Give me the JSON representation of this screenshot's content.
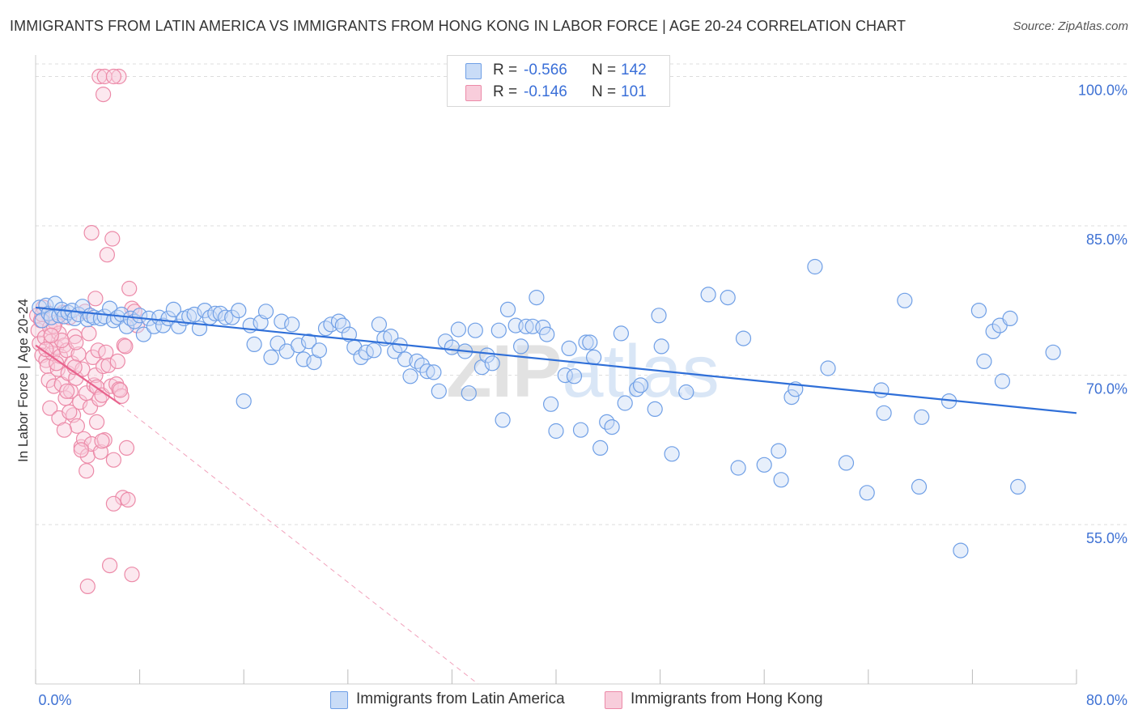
{
  "title": "IMMIGRANTS FROM LATIN AMERICA VS IMMIGRANTS FROM HONG KONG IN LABOR FORCE | AGE 20-24 CORRELATION CHART",
  "source": "Source: ZipAtlas.com",
  "watermark": "ZIPatlas",
  "legend": {
    "r_label": "R =",
    "n_label": "N =",
    "entries": [
      {
        "name": "Immigrants from Latin America",
        "r": "-0.566",
        "n": "142",
        "color": "#6f9fe6",
        "fill": "#c9dcf7"
      },
      {
        "name": "Immigrants from Hong Kong",
        "r": "-0.146",
        "n": "101",
        "color": "#ec8aa8",
        "fill": "#f8cddb"
      }
    ]
  },
  "colors": {
    "blue_line": "#2f6fd8",
    "pink_line": "#e8638d",
    "tick_text": "#3f72d4",
    "grid": "#dddddd"
  },
  "chart_data": {
    "type": "scatter",
    "title": "IMMIGRANTS FROM LATIN AMERICA VS IMMIGRANTS FROM HONG KONG IN LABOR FORCE | AGE 20-24 CORRELATION CHART",
    "xlabel": "",
    "ylabel": "In Labor Force | Age 20-24",
    "xlim": [
      0,
      80
    ],
    "ylim": [
      39,
      101.5
    ],
    "x_tick_labels": [
      {
        "value": 0,
        "label": "0.0%"
      },
      {
        "value": 80,
        "label": "80.0%"
      }
    ],
    "y_ticks": [
      {
        "value": 55,
        "label": "55.0%"
      },
      {
        "value": 70,
        "label": "70.0%"
      },
      {
        "value": 85,
        "label": "85.0%"
      },
      {
        "value": 100,
        "label": "100.0%"
      }
    ],
    "grid": true,
    "series": [
      {
        "name": "Immigrants from Latin America",
        "trend": {
          "x": [
            0,
            80
          ],
          "y": [
            76.8,
            66.2
          ]
        },
        "points": [
          [
            0.3,
            76.8
          ],
          [
            0.5,
            75.5
          ],
          [
            0.8,
            77.0
          ],
          [
            1.0,
            76.2
          ],
          [
            1.2,
            75.8
          ],
          [
            1.5,
            77.2
          ],
          [
            1.8,
            76.0
          ],
          [
            2.0,
            76.6
          ],
          [
            2.2,
            75.9
          ],
          [
            2.5,
            76.3
          ],
          [
            2.8,
            76.5
          ],
          [
            3.0,
            75.7
          ],
          [
            3.3,
            76.1
          ],
          [
            3.6,
            76.9
          ],
          [
            4.0,
            75.6
          ],
          [
            4.2,
            76.0
          ],
          [
            4.5,
            75.8
          ],
          [
            5.0,
            75.7
          ],
          [
            5.3,
            75.9
          ],
          [
            5.7,
            76.7
          ],
          [
            6.0,
            75.5
          ],
          [
            6.3,
            75.8
          ],
          [
            6.6,
            76.1
          ],
          [
            7.0,
            74.9
          ],
          [
            7.3,
            75.7
          ],
          [
            7.6,
            75.4
          ],
          [
            8.0,
            76.0
          ],
          [
            8.3,
            74.1
          ],
          [
            8.7,
            75.7
          ],
          [
            9.1,
            74.9
          ],
          [
            9.5,
            75.8
          ],
          [
            9.8,
            75.0
          ],
          [
            10.2,
            75.7
          ],
          [
            10.6,
            76.6
          ],
          [
            11.0,
            74.9
          ],
          [
            11.4,
            75.7
          ],
          [
            11.8,
            75.9
          ],
          [
            12.2,
            76.1
          ],
          [
            12.6,
            74.7
          ],
          [
            13.0,
            76.5
          ],
          [
            13.4,
            75.8
          ],
          [
            13.8,
            76.2
          ],
          [
            14.2,
            76.2
          ],
          [
            14.6,
            75.8
          ],
          [
            15.1,
            75.8
          ],
          [
            15.6,
            76.5
          ],
          [
            16.0,
            67.4
          ],
          [
            16.5,
            75.0
          ],
          [
            16.8,
            73.1
          ],
          [
            17.3,
            75.3
          ],
          [
            17.7,
            76.4
          ],
          [
            18.1,
            71.8
          ],
          [
            18.6,
            73.2
          ],
          [
            18.9,
            75.4
          ],
          [
            19.3,
            72.4
          ],
          [
            19.7,
            75.1
          ],
          [
            20.2,
            73.0
          ],
          [
            20.6,
            71.6
          ],
          [
            21.0,
            73.4
          ],
          [
            21.4,
            71.3
          ],
          [
            21.8,
            72.5
          ],
          [
            22.3,
            74.7
          ],
          [
            22.7,
            75.1
          ],
          [
            23.3,
            75.4
          ],
          [
            23.6,
            75.0
          ],
          [
            24.1,
            74.1
          ],
          [
            24.5,
            72.8
          ],
          [
            25.0,
            71.8
          ],
          [
            25.4,
            72.3
          ],
          [
            26.0,
            72.5
          ],
          [
            26.4,
            75.1
          ],
          [
            26.8,
            73.7
          ],
          [
            27.3,
            73.9
          ],
          [
            27.6,
            72.4
          ],
          [
            28.0,
            73.0
          ],
          [
            28.4,
            71.6
          ],
          [
            28.8,
            69.9
          ],
          [
            29.3,
            71.4
          ],
          [
            29.7,
            71.0
          ],
          [
            30.1,
            70.4
          ],
          [
            30.6,
            70.3
          ],
          [
            31.0,
            68.4
          ],
          [
            31.5,
            73.4
          ],
          [
            32.0,
            72.8
          ],
          [
            32.5,
            74.6
          ],
          [
            33.0,
            72.4
          ],
          [
            33.3,
            68.2
          ],
          [
            33.8,
            74.5
          ],
          [
            34.3,
            70.8
          ],
          [
            34.7,
            72.0
          ],
          [
            35.1,
            71.2
          ],
          [
            35.6,
            74.5
          ],
          [
            35.9,
            65.5
          ],
          [
            36.3,
            76.6
          ],
          [
            36.9,
            75.0
          ],
          [
            37.3,
            72.9
          ],
          [
            37.7,
            74.9
          ],
          [
            38.2,
            74.9
          ],
          [
            38.5,
            77.8
          ],
          [
            39.0,
            74.8
          ],
          [
            39.3,
            74.1
          ],
          [
            39.6,
            67.1
          ],
          [
            40.0,
            64.4
          ],
          [
            40.7,
            70.0
          ],
          [
            41.0,
            72.7
          ],
          [
            41.4,
            69.9
          ],
          [
            41.9,
            64.5
          ],
          [
            42.3,
            73.3
          ],
          [
            42.6,
            73.3
          ],
          [
            42.9,
            71.8
          ],
          [
            43.4,
            62.7
          ],
          [
            43.9,
            65.3
          ],
          [
            44.3,
            64.8
          ],
          [
            45.0,
            74.2
          ],
          [
            45.3,
            67.2
          ],
          [
            46.2,
            68.6
          ],
          [
            46.5,
            69.0
          ],
          [
            47.6,
            66.6
          ],
          [
            47.9,
            76.0
          ],
          [
            48.1,
            72.9
          ],
          [
            48.9,
            62.1
          ],
          [
            50.0,
            68.3
          ],
          [
            51.7,
            78.1
          ],
          [
            53.2,
            77.8
          ],
          [
            54.0,
            60.7
          ],
          [
            54.4,
            73.7
          ],
          [
            56.0,
            61.0
          ],
          [
            57.1,
            62.4
          ],
          [
            57.3,
            59.5
          ],
          [
            58.1,
            67.8
          ],
          [
            58.4,
            68.6
          ],
          [
            59.9,
            80.9
          ],
          [
            60.9,
            70.7
          ],
          [
            62.3,
            61.2
          ],
          [
            63.9,
            58.2
          ],
          [
            65.0,
            68.5
          ],
          [
            65.2,
            66.2
          ],
          [
            66.8,
            77.5
          ],
          [
            67.9,
            58.8
          ],
          [
            68.1,
            65.8
          ],
          [
            70.2,
            67.4
          ],
          [
            71.1,
            52.4
          ],
          [
            72.5,
            76.5
          ],
          [
            72.9,
            71.4
          ],
          [
            73.6,
            74.4
          ],
          [
            74.1,
            75.0
          ],
          [
            74.3,
            69.4
          ],
          [
            74.9,
            75.7
          ],
          [
            75.5,
            58.8
          ],
          [
            78.2,
            72.3
          ]
        ]
      },
      {
        "name": "Immigrants from Hong Kong",
        "trend": {
          "x": [
            0,
            6.5
          ],
          "y": [
            73.0,
            67.1
          ]
        },
        "trend_extension": {
          "x": [
            6.5,
            34
          ],
          "y": [
            67.1,
            39
          ]
        },
        "points": [
          [
            0.1,
            76.0
          ],
          [
            0.2,
            74.5
          ],
          [
            0.3,
            73.2
          ],
          [
            0.4,
            75.5
          ],
          [
            0.5,
            72.0
          ],
          [
            0.6,
            76.8
          ],
          [
            0.7,
            73.8
          ],
          [
            0.8,
            71.5
          ],
          [
            0.9,
            70.9
          ],
          [
            1.0,
            69.5
          ],
          [
            1.1,
            74.8
          ],
          [
            1.2,
            73.4
          ],
          [
            1.3,
            72.2
          ],
          [
            1.4,
            68.9
          ],
          [
            1.5,
            75.3
          ],
          [
            1.6,
            72.8
          ],
          [
            1.7,
            70.6
          ],
          [
            1.8,
            74.2
          ],
          [
            1.9,
            71.9
          ],
          [
            2.0,
            69.1
          ],
          [
            2.1,
            76.3
          ],
          [
            2.2,
            73.0
          ],
          [
            2.3,
            67.7
          ],
          [
            2.4,
            72.5
          ],
          [
            2.5,
            70.2
          ],
          [
            2.6,
            75.8
          ],
          [
            2.7,
            68.4
          ],
          [
            2.8,
            71.2
          ],
          [
            2.9,
            66.0
          ],
          [
            3.0,
            73.9
          ],
          [
            3.1,
            69.7
          ],
          [
            3.2,
            64.9
          ],
          [
            3.3,
            72.1
          ],
          [
            3.4,
            67.3
          ],
          [
            3.5,
            62.8
          ],
          [
            3.6,
            70.6
          ],
          [
            3.7,
            63.6
          ],
          [
            3.8,
            76.4
          ],
          [
            3.9,
            68.2
          ],
          [
            4.0,
            61.9
          ],
          [
            4.1,
            74.2
          ],
          [
            4.2,
            66.8
          ],
          [
            4.3,
            63.1
          ],
          [
            4.4,
            71.8
          ],
          [
            4.5,
            69.0
          ],
          [
            4.6,
            70.0
          ],
          [
            4.7,
            68.8
          ],
          [
            4.8,
            72.5
          ],
          [
            4.9,
            67.6
          ],
          [
            5.0,
            62.3
          ],
          [
            5.1,
            68.0
          ],
          [
            5.2,
            70.9
          ],
          [
            5.3,
            63.5
          ],
          [
            5.4,
            72.3
          ],
          [
            5.6,
            71.0
          ],
          [
            5.8,
            68.9
          ],
          [
            6.0,
            61.5
          ],
          [
            6.2,
            69.1
          ],
          [
            6.4,
            68.6
          ],
          [
            6.6,
            67.9
          ],
          [
            6.8,
            73.0
          ],
          [
            7.0,
            62.7
          ],
          [
            7.2,
            78.7
          ],
          [
            7.4,
            76.7
          ],
          [
            7.6,
            76.4
          ],
          [
            7.8,
            75.0
          ],
          [
            1.1,
            66.7
          ],
          [
            1.4,
            74.9
          ],
          [
            1.8,
            65.7
          ],
          [
            2.2,
            64.5
          ],
          [
            2.6,
            66.3
          ],
          [
            3.1,
            73.3
          ],
          [
            3.5,
            62.5
          ],
          [
            3.9,
            60.4
          ],
          [
            4.3,
            84.3
          ],
          [
            4.7,
            65.3
          ],
          [
            5.1,
            63.4
          ],
          [
            5.5,
            82.1
          ],
          [
            5.9,
            83.7
          ],
          [
            6.3,
            71.4
          ],
          [
            6.7,
            57.7
          ],
          [
            7.1,
            57.5
          ],
          [
            5.7,
            50.9
          ],
          [
            7.4,
            50.0
          ],
          [
            6.9,
            72.9
          ],
          [
            6.5,
            68.5
          ],
          [
            4.0,
            48.8
          ],
          [
            6.0,
            57.1
          ],
          [
            4.6,
            77.7
          ],
          [
            3.0,
            70.8
          ],
          [
            2.4,
            68.4
          ],
          [
            2.0,
            73.5
          ],
          [
            1.6,
            71.2
          ],
          [
            1.2,
            74.0
          ],
          [
            0.8,
            72.6
          ],
          [
            4.9,
            100.0
          ],
          [
            5.3,
            100.0
          ],
          [
            6.4,
            100.0
          ],
          [
            6.0,
            100.0
          ],
          [
            5.2,
            98.2
          ],
          [
            0.5,
            76.1
          ]
        ]
      }
    ]
  }
}
